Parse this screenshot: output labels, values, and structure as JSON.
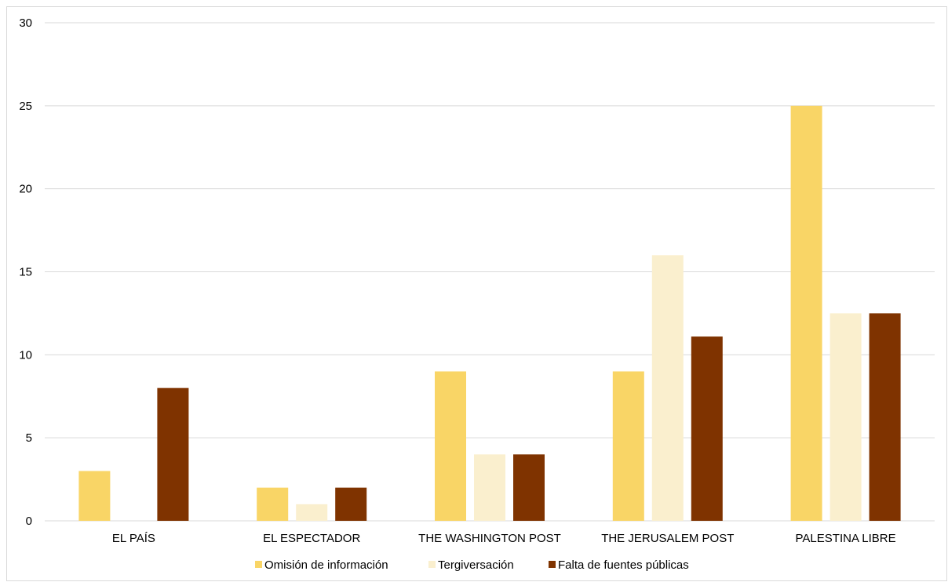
{
  "chart_data": {
    "type": "bar",
    "categories": [
      "EL PAÍS",
      "EL ESPECTADOR",
      "THE WASHINGTON POST",
      "THE JERUSALEM POST",
      "PALESTINA LIBRE"
    ],
    "series": [
      {
        "name": "Omisión de información",
        "color": "#F9D566",
        "values": [
          3,
          2,
          9,
          9,
          25
        ]
      },
      {
        "name": "Tergiversación",
        "color": "#FAEFCE",
        "values": [
          0,
          1,
          4,
          16,
          12.5
        ]
      },
      {
        "name": "Falta de fuentes públicas",
        "color": "#7F3300",
        "values": [
          8,
          2,
          4,
          11.1,
          12.5
        ]
      }
    ],
    "yticks": [
      "0",
      "5",
      "10",
      "15",
      "20",
      "25",
      "30"
    ],
    "ylim": [
      0,
      30
    ],
    "grid": true,
    "legend_position": "bottom",
    "title": "",
    "xlabel": "",
    "ylabel": ""
  },
  "colors": {
    "gridline": "#D9D9D9",
    "border": "#D9D9D9"
  }
}
